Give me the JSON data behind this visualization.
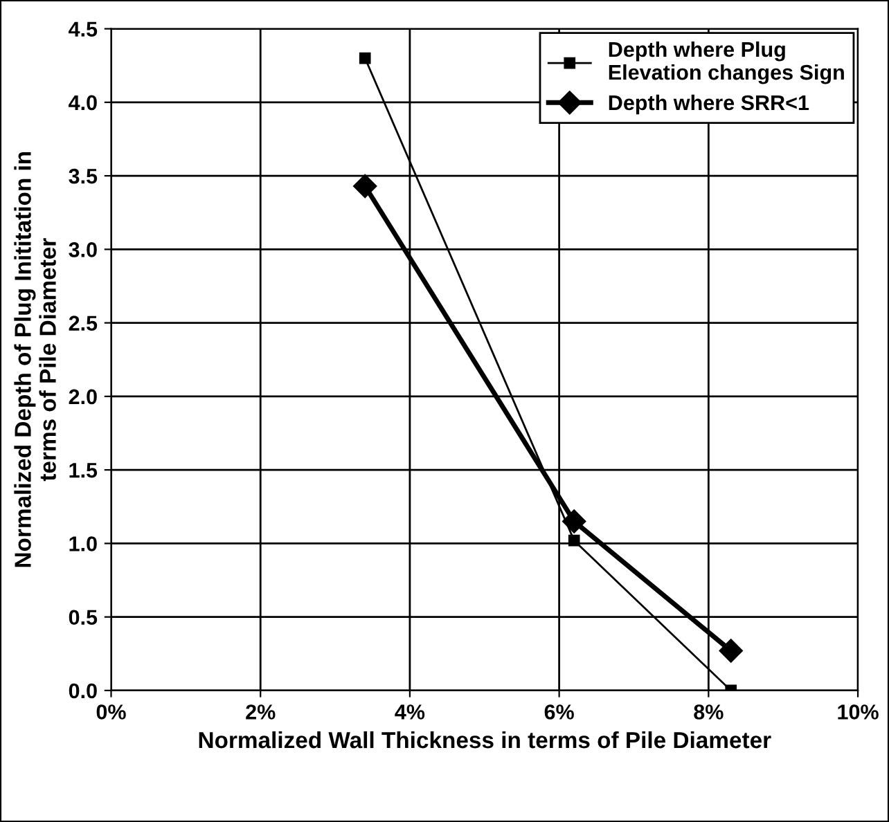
{
  "chart_data": {
    "type": "line",
    "xlabel": "Normalized Wall Thickness in terms of Pile Diameter",
    "ylabel": "Normalized Depth of Plug Inititation in\nterms of Pile Diameter",
    "x": [
      3.4,
      6.2,
      8.3
    ],
    "series": [
      {
        "name": "Depth where Plug\nElevation changes Sign",
        "color": "#000000",
        "values": [
          4.3,
          1.02,
          0.0
        ],
        "marker": "square"
      },
      {
        "name": "Depth where SRR<1",
        "color": "#000000",
        "values": [
          3.43,
          1.15,
          0.27
        ],
        "marker": "diamond"
      }
    ],
    "xlim": [
      0,
      10
    ],
    "xticks": [
      {
        "value": 0,
        "label": "0%"
      },
      {
        "value": 2,
        "label": "2%"
      },
      {
        "value": 4,
        "label": "4%"
      },
      {
        "value": 6,
        "label": "6%"
      },
      {
        "value": 8,
        "label": "8%"
      },
      {
        "value": 10,
        "label": "10%"
      }
    ],
    "ylim": [
      0,
      4.5
    ],
    "yticks": [
      {
        "value": 0,
        "label": "0.0"
      },
      {
        "value": 0.5,
        "label": "0.5"
      },
      {
        "value": 1,
        "label": "1.0"
      },
      {
        "value": 1.5,
        "label": "1.5"
      },
      {
        "value": 2,
        "label": "2.0"
      },
      {
        "value": 2.5,
        "label": "2.5"
      },
      {
        "value": 3,
        "label": "3.0"
      },
      {
        "value": 3.5,
        "label": "3.5"
      },
      {
        "value": 4,
        "label": "4.0"
      },
      {
        "value": 4.5,
        "label": "4.5"
      }
    ],
    "grid": true,
    "legend": "top right"
  }
}
